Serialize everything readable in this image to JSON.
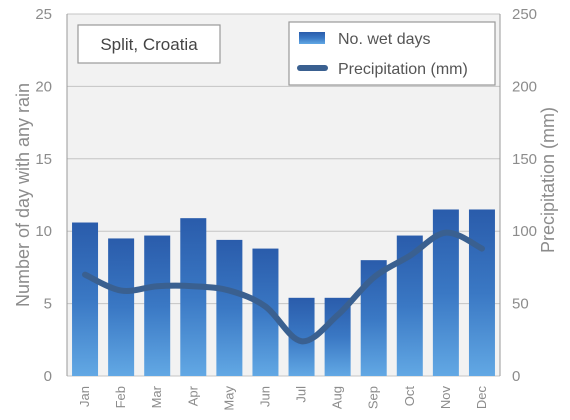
{
  "chart_data": {
    "type": "bar",
    "title": "Split, Croatia",
    "categories": [
      "Jan",
      "Feb",
      "Mar",
      "Apr",
      "May",
      "Jun",
      "Jul",
      "Aug",
      "Sep",
      "Oct",
      "Nov",
      "Dec"
    ],
    "ylabel": "Number of day with any rain",
    "y2label": "Precipitation (mm)",
    "ylim": [
      0,
      25
    ],
    "y2lim": [
      0,
      250
    ],
    "yticks": [
      "0",
      "5",
      "10",
      "15",
      "20",
      "25"
    ],
    "y2ticks": [
      "0",
      "50",
      "100",
      "150",
      "200",
      "250"
    ],
    "grid": true,
    "legend_position": "top-right",
    "series": [
      {
        "name": "No. wet days",
        "type": "bar",
        "axis": "left",
        "color": "#2b5fb0",
        "values": [
          10.6,
          9.5,
          9.7,
          10.9,
          9.4,
          8.8,
          5.4,
          5.4,
          8.0,
          9.7,
          11.5,
          11.5
        ]
      },
      {
        "name": "Precipitation (mm)",
        "type": "line",
        "axis": "right",
        "color": "#3a6090",
        "values": [
          70,
          59,
          62,
          62,
          59,
          48,
          24,
          42,
          68,
          83,
          99,
          88
        ]
      }
    ]
  }
}
